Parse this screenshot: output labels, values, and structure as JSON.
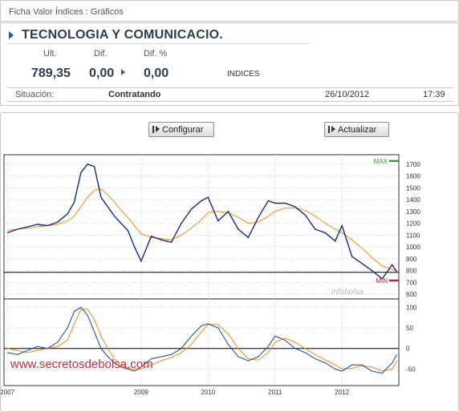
{
  "breadcrumb": "Ficha Valor Índices : Gráficos",
  "quote": {
    "title": "TECNOLOGIA Y COMUNICACIO.",
    "labels": {
      "last": "Ult.",
      "change": "Dif.",
      "change_pct": "Dif. %"
    },
    "values": {
      "last": "789,35",
      "change": "0,00",
      "change_pct": "0,00"
    },
    "market": "INDICES"
  },
  "status": {
    "label": "Situación:",
    "value": "Contratando",
    "date": "26/10/2012",
    "time": "17:39"
  },
  "toolbar": {
    "configure_label": "Configurar",
    "refresh_label": "Actualizar"
  },
  "watermarks": {
    "logo": "infobolsa",
    "site": "www.secretosdebolsa.com"
  },
  "colors": {
    "price": "#1a2a7a",
    "average": "#f08a1e",
    "oscillator_a": "#1c3f9a",
    "oscillator_b": "#f08a1e",
    "max_marker": "#2e9e3a",
    "min_marker": "#b0273a",
    "watermark_site": "#c03040"
  },
  "chart_data": [
    {
      "type": "line",
      "ylim": [
        560,
        1780
      ],
      "y_ticks": [
        "1700",
        "1600",
        "1500",
        "1400",
        "1300",
        "1200",
        "1100",
        "1000",
        "900",
        "800",
        "700",
        "600"
      ],
      "x_ticks": [
        "2007",
        "2009",
        "2010",
        "2011",
        "2012"
      ],
      "markers": {
        "max": "MAX",
        "min": "MIN",
        "reference_level": 785
      },
      "x": [
        2007.0,
        2007.15,
        2007.3,
        2007.45,
        2007.6,
        2007.75,
        2007.9,
        2008.0,
        2008.1,
        2008.2,
        2008.3,
        2008.4,
        2008.5,
        2008.6,
        2008.7,
        2008.8,
        2008.9,
        2009.0,
        2009.15,
        2009.3,
        2009.45,
        2009.6,
        2009.75,
        2009.9,
        2010.0,
        2010.15,
        2010.3,
        2010.45,
        2010.6,
        2010.75,
        2010.9,
        2011.0,
        2011.15,
        2011.3,
        2011.45,
        2011.6,
        2011.75,
        2011.9,
        2012.0,
        2012.15,
        2012.3,
        2012.45,
        2012.6,
        2012.75,
        2012.82
      ],
      "series": [
        {
          "values": [
            1120,
            1150,
            1170,
            1190,
            1180,
            1210,
            1280,
            1380,
            1630,
            1700,
            1680,
            1420,
            1340,
            1260,
            1200,
            1140,
            1000,
            880,
            1090,
            1060,
            1040,
            1200,
            1320,
            1390,
            1420,
            1220,
            1300,
            1150,
            1080,
            1250,
            1390,
            1370,
            1370,
            1340,
            1270,
            1150,
            1120,
            1050,
            1180,
            920,
            860,
            800,
            730,
            850,
            790
          ]
        },
        {
          "values": [
            1140,
            1150,
            1160,
            1170,
            1180,
            1190,
            1220,
            1260,
            1340,
            1420,
            1480,
            1490,
            1440,
            1380,
            1310,
            1250,
            1180,
            1110,
            1080,
            1070,
            1060,
            1100,
            1160,
            1230,
            1290,
            1300,
            1290,
            1250,
            1200,
            1210,
            1260,
            1300,
            1330,
            1330,
            1310,
            1260,
            1200,
            1150,
            1120,
            1060,
            990,
            910,
            840,
            810,
            800
          ]
        }
      ]
    },
    {
      "type": "line",
      "ylim": [
        -90,
        120
      ],
      "y_ticks": [
        "100",
        "50",
        "0",
        "-50"
      ],
      "x": [
        2007.0,
        2007.15,
        2007.3,
        2007.45,
        2007.6,
        2007.75,
        2007.9,
        2008.0,
        2008.1,
        2008.2,
        2008.3,
        2008.4,
        2008.5,
        2008.6,
        2008.7,
        2008.8,
        2008.9,
        2009.0,
        2009.15,
        2009.3,
        2009.45,
        2009.6,
        2009.75,
        2009.9,
        2010.0,
        2010.15,
        2010.3,
        2010.45,
        2010.6,
        2010.75,
        2010.9,
        2011.0,
        2011.15,
        2011.3,
        2011.45,
        2011.6,
        2011.75,
        2011.9,
        2012.0,
        2012.15,
        2012.3,
        2012.45,
        2012.6,
        2012.75,
        2012.82
      ],
      "series": [
        {
          "values": [
            -10,
            -15,
            -5,
            5,
            0,
            15,
            50,
            90,
            100,
            80,
            40,
            0,
            -20,
            -35,
            -45,
            -50,
            -55,
            -45,
            -25,
            -20,
            -15,
            0,
            30,
            55,
            60,
            50,
            10,
            -20,
            -30,
            -20,
            5,
            30,
            20,
            0,
            -10,
            -25,
            -35,
            -50,
            -55,
            -40,
            -40,
            -55,
            -60,
            -35,
            -15
          ]
        },
        {
          "values": [
            0,
            -5,
            -10,
            -5,
            0,
            5,
            20,
            60,
            95,
            95,
            70,
            30,
            0,
            -25,
            -40,
            -48,
            -50,
            -50,
            -40,
            -30,
            -22,
            -10,
            10,
            40,
            58,
            58,
            35,
            0,
            -25,
            -28,
            -10,
            15,
            25,
            15,
            0,
            -15,
            -28,
            -40,
            -50,
            -48,
            -42,
            -45,
            -55,
            -50,
            -30
          ]
        }
      ]
    }
  ]
}
